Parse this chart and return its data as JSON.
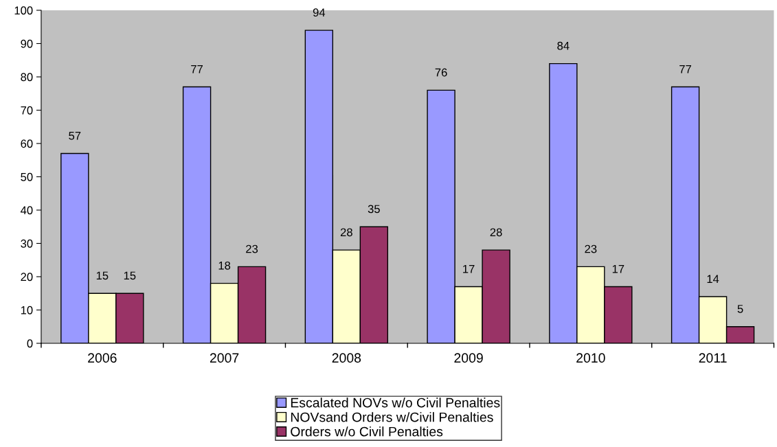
{
  "chart_data": {
    "type": "bar",
    "categories": [
      "2006",
      "2007",
      "2008",
      "2009",
      "2010",
      "2011"
    ],
    "series": [
      {
        "name": "Escalated NOVs w/o Civil Penalties",
        "color": "#9999ff",
        "values": [
          57,
          77,
          94,
          76,
          84,
          77
        ]
      },
      {
        "name": "NOVsand Orders w/Civil Penalties",
        "color": "#ffffcc",
        "values": [
          15,
          18,
          28,
          17,
          23,
          14
        ]
      },
      {
        "name": "Orders w/o Civil Penalties",
        "color": "#993366",
        "values": [
          15,
          23,
          35,
          28,
          17,
          5
        ]
      }
    ],
    "ylim": [
      0,
      100
    ],
    "yticks": [
      0,
      10,
      20,
      30,
      40,
      50,
      60,
      70,
      80,
      90,
      100
    ],
    "data_labels": true,
    "grid": false,
    "legend": "bottom"
  }
}
